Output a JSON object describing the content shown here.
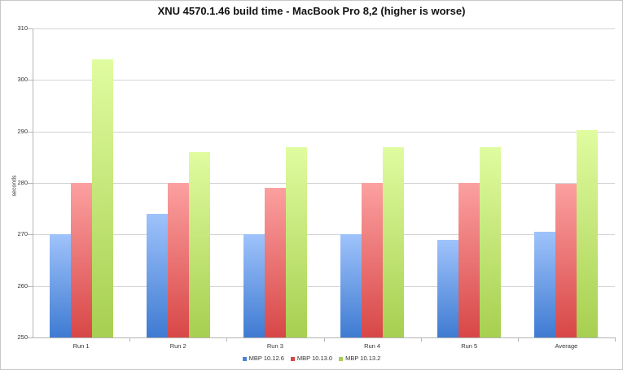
{
  "chart_data": {
    "type": "bar",
    "title": "XNU 4570.1.46 build time - MacBook Pro 8,2 (higher is worse)",
    "xlabel": "",
    "ylabel": "seconds",
    "ylim": [
      250,
      310
    ],
    "yticks": [
      250,
      260,
      270,
      280,
      290,
      300,
      310
    ],
    "grid": true,
    "legend_position": "bottom",
    "categories": [
      "Run 1",
      "Run 2",
      "Run 3",
      "Run 4",
      "Run 5",
      "Average"
    ],
    "series": [
      {
        "name": "MBP 10.12.6",
        "color": "#4a86d8",
        "values": [
          270,
          274,
          270,
          270,
          269,
          270.6
        ]
      },
      {
        "name": "MBP 10.13.0",
        "color": "#d94545",
        "values": [
          280,
          280,
          279,
          280,
          280,
          279.8
        ]
      },
      {
        "name": "MBP 10.13.2",
        "color": "#a8cf4f",
        "values": [
          304,
          286,
          287,
          287,
          287,
          290.2
        ]
      }
    ]
  },
  "series_gradients": [
    {
      "top": "#9fc3fb",
      "bottom": "#3f7bd2"
    },
    {
      "top": "#fca0a0",
      "bottom": "#d84747"
    },
    {
      "top": "#e0fca0",
      "bottom": "#a7cf50"
    }
  ]
}
